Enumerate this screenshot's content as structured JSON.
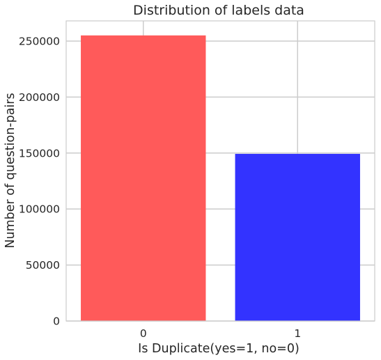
{
  "chart_data": {
    "type": "bar",
    "title": "Distribution of labels data",
    "xlabel": "Is Duplicate(yes=1, no=0)",
    "ylabel": "Number of question-pairs",
    "categories": [
      "0",
      "1"
    ],
    "values": [
      255027,
      149263
    ],
    "colors": [
      "#ff5a5a",
      "#3333ff"
    ],
    "ylim": [
      0,
      268000
    ],
    "yticks": [
      0,
      50000,
      100000,
      150000,
      200000,
      250000
    ],
    "ytick_labels": [
      "0",
      "50000",
      "100000",
      "150000",
      "200000",
      "250000"
    ],
    "grid": true,
    "legend": "none"
  }
}
